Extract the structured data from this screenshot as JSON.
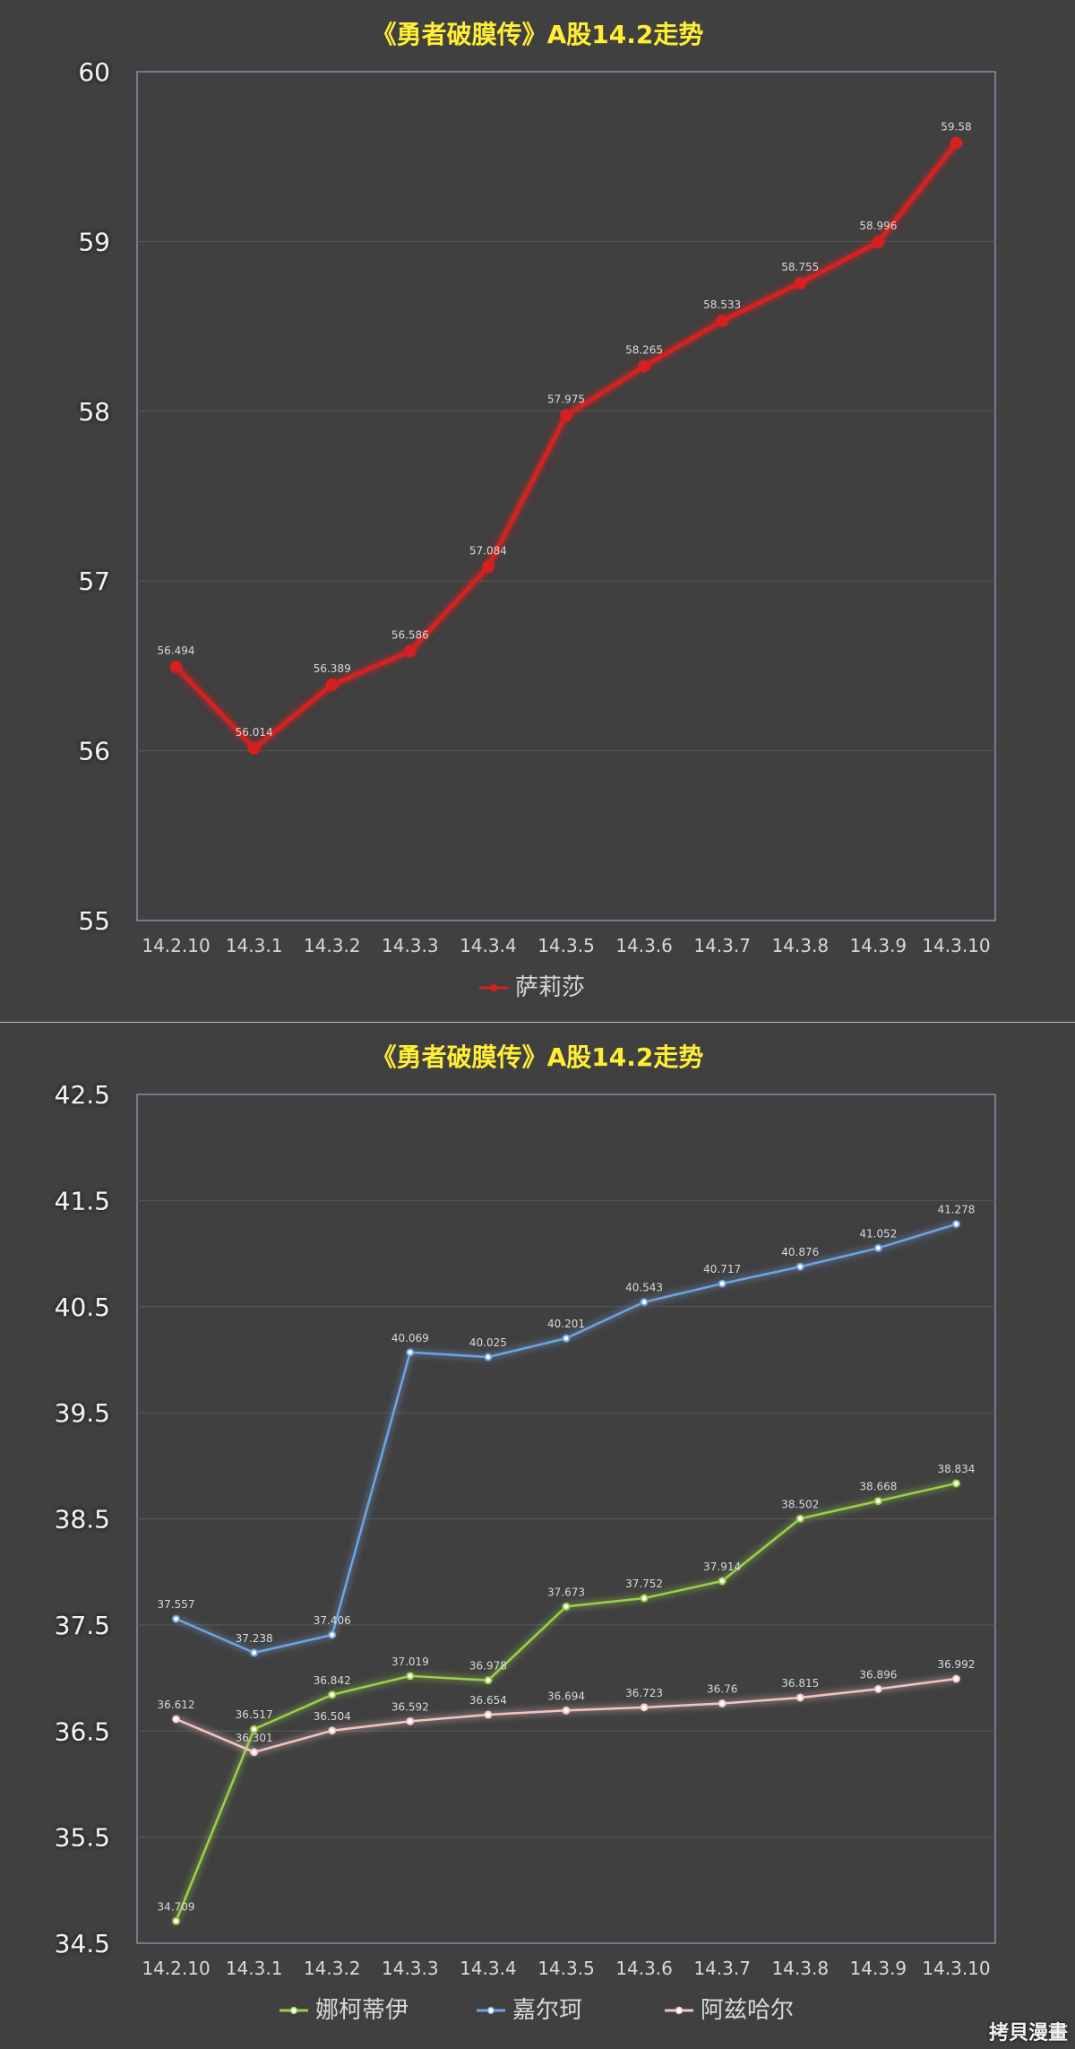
{
  "watermark": "拷貝漫畫",
  "chart_data": [
    {
      "type": "line",
      "title": "《勇者破膜传》A股14.2走势",
      "categories": [
        "14.2.10",
        "14.3.1",
        "14.3.2",
        "14.3.3",
        "14.3.4",
        "14.3.5",
        "14.3.6",
        "14.3.7",
        "14.3.8",
        "14.3.9",
        "14.3.10"
      ],
      "ylim": [
        55,
        60
      ],
      "yticks": [
        "55",
        "56",
        "57",
        "58",
        "59",
        "60"
      ],
      "grid": true,
      "legend": "bottom",
      "series": [
        {
          "name": "萨莉莎",
          "color": "#d42020",
          "values": [
            56.494,
            56.014,
            56.389,
            56.586,
            57.084,
            57.975,
            58.265,
            58.533,
            58.755,
            58.996,
            59.58
          ],
          "labels": [
            "56.494",
            "56.014",
            "56.389",
            "56.586",
            "57.084",
            "57.975",
            "58.265",
            "58.533",
            "58.755",
            "58.996",
            "59.58"
          ]
        }
      ]
    },
    {
      "type": "line",
      "title": "《勇者破膜传》A股14.2走势",
      "categories": [
        "14.2.10",
        "14.3.1",
        "14.3.2",
        "14.3.3",
        "14.3.4",
        "14.3.5",
        "14.3.6",
        "14.3.7",
        "14.3.8",
        "14.3.9",
        "14.3.10"
      ],
      "ylim": [
        34.5,
        42.5
      ],
      "yticks": [
        "34.5",
        "35.5",
        "36.5",
        "37.5",
        "38.5",
        "39.5",
        "40.5",
        "41.5",
        "42.5"
      ],
      "grid": true,
      "legend": "bottom",
      "series": [
        {
          "name": "娜柯蒂伊",
          "color": "#9ad04a",
          "values": [
            34.709,
            36.517,
            36.842,
            37.019,
            36.978,
            37.673,
            37.752,
            37.914,
            38.502,
            38.668,
            38.834
          ],
          "labels": [
            "34.709",
            "36.517",
            "36.842",
            "37.019",
            "36.978",
            "37.673",
            "37.752",
            "37.914",
            "38.502",
            "38.668",
            "38.834"
          ]
        },
        {
          "name": "嘉尔珂",
          "color": "#6fa3e0",
          "values": [
            37.557,
            37.238,
            37.406,
            40.069,
            40.025,
            40.201,
            40.543,
            40.717,
            40.876,
            41.052,
            41.278
          ],
          "labels": [
            "37.557",
            "37.238",
            "37.406",
            "40.069",
            "40.025",
            "40.201",
            "40.543",
            "40.717",
            "40.876",
            "41.052",
            "41.278"
          ]
        },
        {
          "name": "阿兹哈尔",
          "color": "#f2c4c4",
          "values": [
            36.612,
            36.301,
            36.504,
            36.592,
            36.654,
            36.694,
            36.723,
            36.76,
            36.815,
            36.896,
            36.992
          ],
          "labels": [
            "36.612",
            "36.301",
            "36.504",
            "36.592",
            "36.654",
            "36.694",
            "36.723",
            "36.76",
            "36.815",
            "36.896",
            "36.992"
          ]
        }
      ]
    }
  ]
}
